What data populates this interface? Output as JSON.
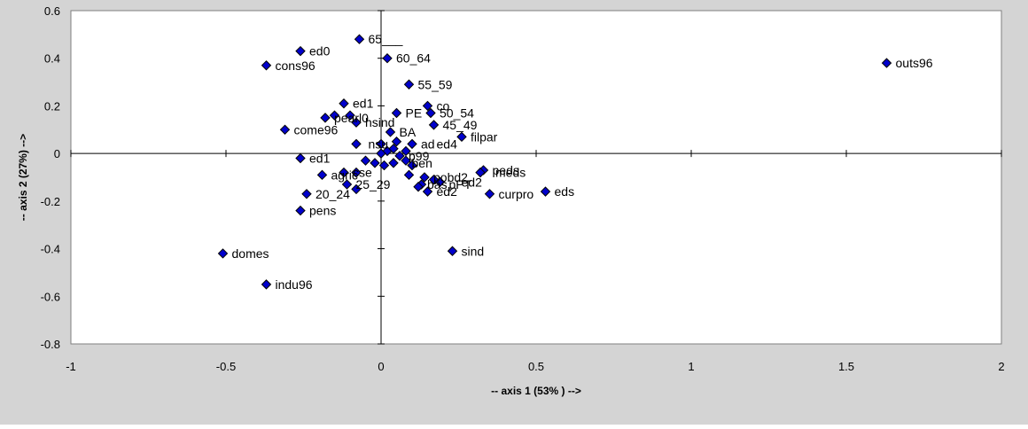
{
  "chart_data": {
    "type": "scatter",
    "title": "",
    "xlabel": "-- axis 1 (53% ) -->",
    "ylabel": "-- axis 2 (27%) -->",
    "xlim": [
      -1,
      2
    ],
    "ylim": [
      -0.8,
      0.6
    ],
    "x_ticks": [
      -1,
      -0.5,
      0,
      0.5,
      1,
      1.5,
      2
    ],
    "x_tick_labels": [
      "-1",
      "-0.5",
      "0",
      "0.5",
      "1",
      "1.5",
      "2"
    ],
    "y_ticks": [
      -0.8,
      -0.6,
      -0.4,
      -0.2,
      0,
      0.2,
      0.4,
      0.6
    ],
    "y_tick_labels": [
      "-0.8",
      "-0.6",
      "-0.4",
      "-0.2",
      "0",
      "0.2",
      "0.4",
      "0.6"
    ],
    "grid": false,
    "legend": "none",
    "marker": "diamond",
    "colors": {
      "marker_fill": "#0000cc",
      "marker_stroke": "#000000",
      "frame_bg": "#d4d4d4",
      "plot_bg": "#ffffff"
    },
    "points": [
      {
        "label": "65___",
        "x": -0.07,
        "y": 0.48
      },
      {
        "label": "ed0",
        "x": -0.26,
        "y": 0.43
      },
      {
        "label": "60_64",
        "x": 0.02,
        "y": 0.4
      },
      {
        "label": "cons96",
        "x": -0.37,
        "y": 0.37
      },
      {
        "label": "outs96",
        "x": 1.63,
        "y": 0.38
      },
      {
        "label": "55_59",
        "x": 0.09,
        "y": 0.29
      },
      {
        "label": "ed1",
        "x": -0.12,
        "y": 0.21
      },
      {
        "label": "",
        "x": -0.15,
        "y": 0.16
      },
      {
        "label": "",
        "x": -0.18,
        "y": 0.15
      },
      {
        "label": "",
        "x": -0.1,
        "y": 0.16
      },
      {
        "label": "co",
        "x": 0.15,
        "y": 0.2
      },
      {
        "label": "PE",
        "x": 0.05,
        "y": 0.17
      },
      {
        "label": "50_54",
        "x": 0.16,
        "y": 0.17
      },
      {
        "label": "hsind",
        "x": -0.08,
        "y": 0.13
      },
      {
        "label": "45_49",
        "x": 0.17,
        "y": 0.12
      },
      {
        "label": "come96",
        "x": -0.31,
        "y": 0.1
      },
      {
        "label": "BA",
        "x": 0.03,
        "y": 0.09
      },
      {
        "label": "filpar",
        "x": 0.26,
        "y": 0.07
      },
      {
        "label": "",
        "x": -0.08,
        "y": 0.04
      },
      {
        "label": "",
        "x": 0.0,
        "y": 0.04
      },
      {
        "label": "",
        "x": 0.05,
        "y": 0.05
      },
      {
        "label": "",
        "x": 0.1,
        "y": 0.04
      },
      {
        "label": "",
        "x": 0.02,
        "y": 0.01
      },
      {
        "label": "",
        "x": 0.04,
        "y": 0.02
      },
      {
        "label": "",
        "x": 0.08,
        "y": 0.01
      },
      {
        "label": "",
        "x": 0.0,
        "y": 0.0
      },
      {
        "label": "",
        "x": 0.06,
        "y": -0.01
      },
      {
        "label": "ed1",
        "x": -0.26,
        "y": -0.02
      },
      {
        "label": "",
        "x": -0.05,
        "y": -0.03
      },
      {
        "label": "",
        "x": -0.02,
        "y": -0.04
      },
      {
        "label": "",
        "x": 0.01,
        "y": -0.05
      },
      {
        "label": "",
        "x": 0.04,
        "y": -0.04
      },
      {
        "label": "",
        "x": 0.08,
        "y": -0.03
      },
      {
        "label": "",
        "x": 0.1,
        "y": -0.05
      },
      {
        "label": "",
        "x": -0.12,
        "y": -0.08
      },
      {
        "label": "",
        "x": -0.08,
        "y": -0.08
      },
      {
        "label": "agric",
        "x": -0.19,
        "y": -0.09
      },
      {
        "label": "",
        "x": 0.09,
        "y": -0.09
      },
      {
        "label": "",
        "x": 0.14,
        "y": -0.1
      },
      {
        "label": "",
        "x": 0.17,
        "y": -0.11
      },
      {
        "label": "",
        "x": 0.19,
        "y": -0.12
      },
      {
        "label": "",
        "x": 0.13,
        "y": -0.13
      },
      {
        "label": "",
        "x": 0.12,
        "y": -0.14
      },
      {
        "label": "peds",
        "x": 0.33,
        "y": -0.07
      },
      {
        "label": "",
        "x": 0.32,
        "y": -0.08
      },
      {
        "label": "25_29",
        "x": -0.11,
        "y": -0.13
      },
      {
        "label": "",
        "x": -0.08,
        "y": -0.15
      },
      {
        "label": "ed2",
        "x": 0.15,
        "y": -0.16
      },
      {
        "label": "20_24",
        "x": -0.24,
        "y": -0.17
      },
      {
        "label": "curpro",
        "x": 0.35,
        "y": -0.17
      },
      {
        "label": "eds",
        "x": 0.53,
        "y": -0.16
      },
      {
        "label": "pens",
        "x": -0.26,
        "y": -0.24
      },
      {
        "label": "sind",
        "x": 0.23,
        "y": -0.41
      },
      {
        "label": "domes",
        "x": -0.51,
        "y": -0.42
      },
      {
        "label": "indu96",
        "x": -0.37,
        "y": -0.55
      }
    ],
    "annotations": [
      {
        "text": "pearl0",
        "x": -0.18,
        "y": 0.15
      },
      {
        "text": "nsu",
        "x": -0.07,
        "y": 0.04
      },
      {
        "text": "ad",
        "x": 0.1,
        "y": 0.04
      },
      {
        "text": "ed4",
        "x": 0.15,
        "y": 0.04
      },
      {
        "text": "p99",
        "x": 0.06,
        "y": -0.01
      },
      {
        "text": "ben",
        "x": 0.07,
        "y": -0.04
      },
      {
        "text": "cse",
        "x": -0.12,
        "y": -0.08
      },
      {
        "text": "pobd2",
        "x": 0.14,
        "y": -0.1
      },
      {
        "text": "ed2",
        "x": 0.23,
        "y": -0.12
      },
      {
        "text": "bas",
        "x": 0.12,
        "y": -0.13
      },
      {
        "text": "pPT",
        "x": 0.19,
        "y": -0.13
      },
      {
        "text": "meds",
        "x": 0.34,
        "y": -0.08
      }
    ]
  }
}
